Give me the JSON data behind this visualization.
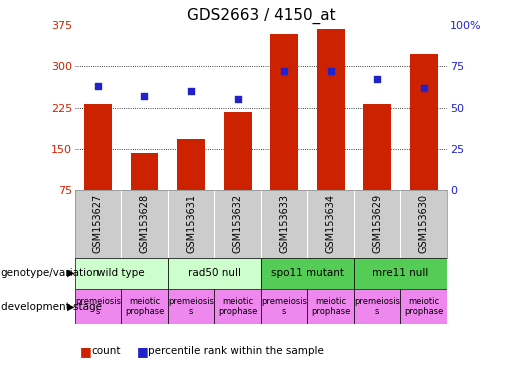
{
  "title": "GDS2663 / 4150_at",
  "samples": [
    "GSM153627",
    "GSM153628",
    "GSM153631",
    "GSM153632",
    "GSM153633",
    "GSM153634",
    "GSM153629",
    "GSM153630"
  ],
  "counts": [
    232,
    143,
    168,
    217,
    358,
    368,
    232,
    322
  ],
  "percentiles": [
    63,
    57,
    60,
    55,
    72,
    72,
    67,
    62
  ],
  "ylim_left": [
    75,
    375
  ],
  "ylim_right": [
    0,
    100
  ],
  "yticks_left": [
    75,
    150,
    225,
    300,
    375
  ],
  "yticks_right": [
    0,
    25,
    50,
    75,
    100
  ],
  "bar_color": "#cc2200",
  "dot_color": "#2222cc",
  "grid_color": "#000000",
  "bg_color": "#ffffff",
  "left_label_color": "#cc2200",
  "right_label_color": "#2222cc",
  "geno_data": [
    [
      0,
      2,
      "wild type",
      "#ccffcc"
    ],
    [
      2,
      4,
      "rad50 null",
      "#ccffcc"
    ],
    [
      4,
      6,
      "spo11 mutant",
      "#55cc55"
    ],
    [
      6,
      8,
      "mre11 null",
      "#55cc55"
    ]
  ],
  "dev_data": [
    [
      0,
      1,
      "premeiosis\ns",
      "#ee88ee"
    ],
    [
      1,
      2,
      "meiotic\nprophase",
      "#ee88ee"
    ],
    [
      2,
      3,
      "premeiosis\ns",
      "#ee88ee"
    ],
    [
      3,
      4,
      "meiotic\nprophase",
      "#ee88ee"
    ],
    [
      4,
      5,
      "premeiosis\ns",
      "#ee88ee"
    ],
    [
      5,
      6,
      "meiotic\nprophase",
      "#ee88ee"
    ],
    [
      6,
      7,
      "premeiosis\ns",
      "#ee88ee"
    ],
    [
      7,
      8,
      "meiotic\nprophase",
      "#ee88ee"
    ]
  ],
  "title_fontsize": 11,
  "tick_fontsize": 8,
  "sample_fontsize": 7,
  "geno_fontsize": 7.5,
  "dev_fontsize": 6.0,
  "legend_fontsize": 7.5,
  "side_label_fontsize": 7.5,
  "names_bg": "#cccccc",
  "names_line_color": "#aaaaaa"
}
